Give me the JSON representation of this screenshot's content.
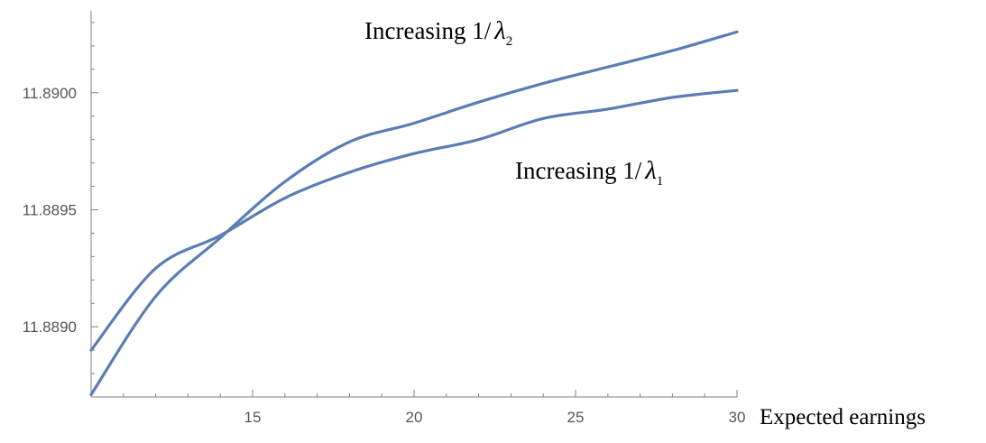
{
  "chart_data": {
    "type": "line",
    "title": "",
    "xlabel": "Expected earnings",
    "ylabel": "",
    "xlim": [
      10,
      30
    ],
    "ylim": [
      11.8887,
      11.89035
    ],
    "x_ticks": [
      "15",
      "20",
      "25",
      "30"
    ],
    "y_ticks": [
      "11.8890",
      "11.8895",
      "11.8900"
    ],
    "x_minor_step": 1,
    "y_minor_step": 0.0001,
    "grid": false,
    "line_color": "#5b7db3",
    "series": [
      {
        "x": [
          10,
          12,
          14,
          16,
          18,
          20,
          22,
          24,
          26,
          28,
          30
        ],
        "y": [
          11.8889,
          11.88925,
          11.88939,
          11.88955,
          11.88966,
          11.88974,
          11.8898,
          11.88989,
          11.88993,
          11.88998,
          11.89001
        ]
      },
      {
        "x": [
          10,
          12,
          14,
          16,
          18,
          20,
          22,
          24,
          26,
          28,
          30
        ],
        "y": [
          11.88871,
          11.88913,
          11.88938,
          11.88962,
          11.88979,
          11.88987,
          11.88996,
          11.89004,
          11.89011,
          11.89018,
          11.89026
        ]
      }
    ],
    "annotations": [
      {
        "text_prefix": "Increasing ",
        "numer": "1/",
        "symbol": "λ",
        "sub": "2"
      },
      {
        "text_prefix": "Increasing ",
        "numer": "1/",
        "symbol": "λ",
        "sub": "1"
      }
    ]
  }
}
